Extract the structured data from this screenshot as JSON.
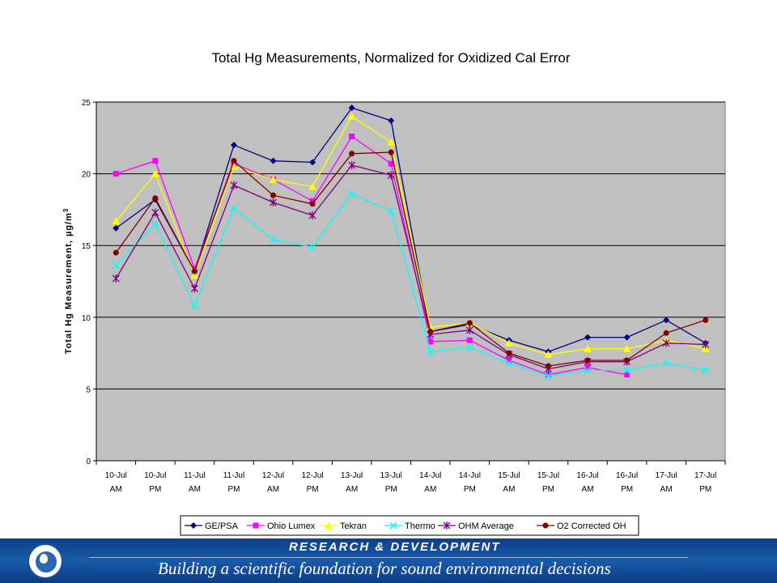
{
  "chart_data": {
    "type": "line",
    "title": "Total Hg Measurements, Normalized for Oxidized Cal Error",
    "ylabel_main": "Total Hg Measurement, ",
    "ylabel_unit": "µg/m",
    "ylabel_sup": "3",
    "ylim": [
      0,
      25
    ],
    "yticks": [
      0,
      5,
      10,
      15,
      20,
      25
    ],
    "grid": true,
    "legend_position": "bottom",
    "categories": [
      [
        "10-Jul",
        "AM"
      ],
      [
        "10-Jul",
        "PM"
      ],
      [
        "11-Jul",
        "AM"
      ],
      [
        "11-Jul",
        "PM"
      ],
      [
        "12-Jul",
        "AM"
      ],
      [
        "12-Jul",
        "PM"
      ],
      [
        "13-Jul",
        "AM"
      ],
      [
        "13-Jul",
        "PM"
      ],
      [
        "14-Jul",
        "AM"
      ],
      [
        "14-Jul",
        "PM"
      ],
      [
        "15-Jul",
        "AM"
      ],
      [
        "15-Jul",
        "PM"
      ],
      [
        "16-Jul",
        "AM"
      ],
      [
        "16-Jul",
        "PM"
      ],
      [
        "17-Jul",
        "AM"
      ],
      [
        "17-Jul",
        "PM"
      ]
    ],
    "series": [
      {
        "name": "GE/PSA",
        "color": "#000080",
        "marker": "diamond",
        "values": [
          16.2,
          18.2,
          13.2,
          22.0,
          20.9,
          20.8,
          24.6,
          23.7,
          9.0,
          9.5,
          8.4,
          7.6,
          8.6,
          8.6,
          9.8,
          8.2
        ]
      },
      {
        "name": "Ohio Lumex",
        "color": "#ff00ff",
        "marker": "square",
        "values": [
          20.0,
          20.9,
          13.4,
          20.7,
          19.6,
          18.1,
          22.6,
          20.7,
          8.3,
          8.4,
          7.0,
          6.0,
          6.5,
          6.0,
          null,
          null
        ]
      },
      {
        "name": "Tekran",
        "color": "#ffff00",
        "marker": "triangle",
        "values": [
          16.7,
          20.0,
          12.9,
          20.5,
          19.6,
          19.1,
          24.0,
          22.2,
          9.3,
          9.6,
          8.2,
          7.4,
          7.8,
          7.8,
          8.4,
          7.8
        ]
      },
      {
        "name": "Thermo",
        "color": "#00ffff",
        "marker": "x",
        "values": [
          13.6,
          16.5,
          10.8,
          17.6,
          15.4,
          14.9,
          18.6,
          17.4,
          7.6,
          7.9,
          6.8,
          5.9,
          6.3,
          6.3,
          6.8,
          6.3
        ]
      },
      {
        "name": "OHM Average",
        "color": "#800080",
        "marker": "star",
        "values": [
          12.7,
          17.3,
          12.0,
          19.2,
          18.0,
          17.1,
          20.6,
          19.9,
          8.8,
          9.1,
          7.4,
          6.4,
          6.9,
          6.9,
          8.2,
          8.1
        ]
      },
      {
        "name": "O2 Corrected OH",
        "color": "#800000",
        "marker": "circle",
        "values": [
          14.5,
          18.3,
          13.2,
          20.9,
          18.5,
          17.9,
          21.4,
          21.5,
          9.0,
          9.6,
          7.5,
          6.6,
          7.0,
          7.0,
          8.9,
          9.8
        ]
      }
    ]
  },
  "footer": {
    "heading": "RESEARCH & DEVELOPMENT",
    "tagline": "Building a scientific foundation for sound environmental decisions",
    "logo": "epa-seal-icon"
  }
}
